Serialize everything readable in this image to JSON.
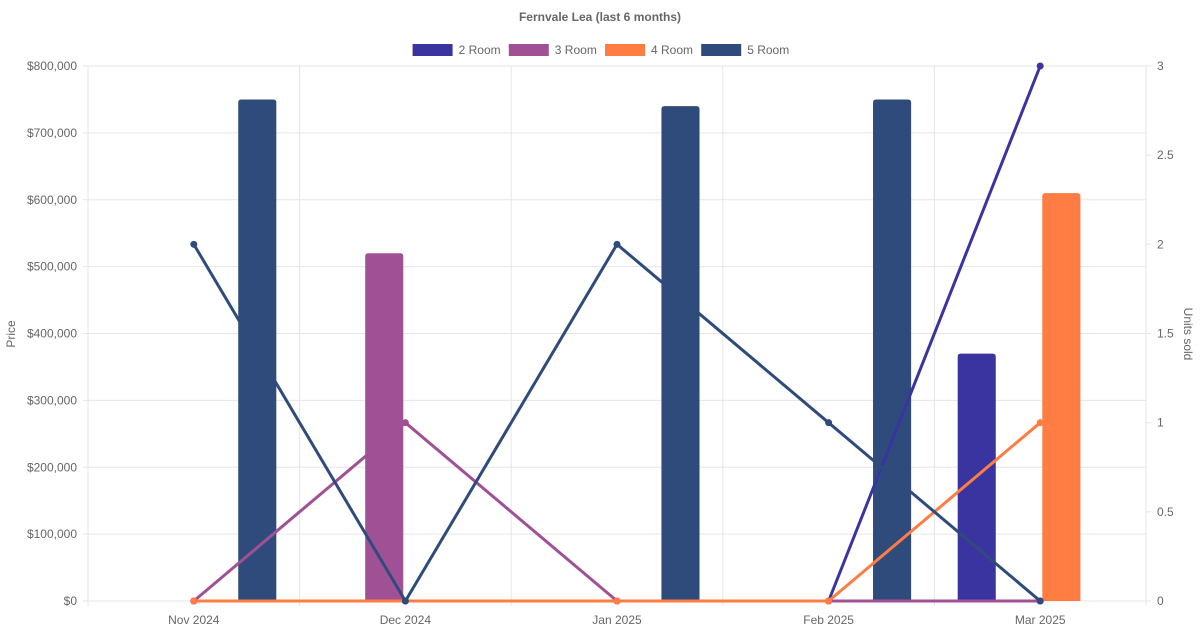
{
  "chart_data": {
    "type": "bar",
    "title": "Fernvale Lea (last 6 months)",
    "categories": [
      "Nov 2024",
      "Dec 2024",
      "Jan 2025",
      "Feb 2025",
      "Mar 2025"
    ],
    "ylabel": "Price",
    "y2label": "Units sold",
    "ylim": [
      0,
      800000
    ],
    "y2lim": [
      0,
      3
    ],
    "yticks": [
      "$0",
      "$100,000",
      "$200,000",
      "$300,000",
      "$400,000",
      "$500,000",
      "$600,000",
      "$700,000",
      "$800,000"
    ],
    "y2ticks": [
      "0",
      "0.5",
      "1",
      "1.5",
      "2",
      "2.5",
      "3"
    ],
    "legend_position": "top",
    "grid": true,
    "series": [
      {
        "name": "2 Room",
        "color": "#3a34a0",
        "price": [
          null,
          null,
          null,
          null,
          370000
        ],
        "units": [
          0,
          0,
          0,
          0,
          3
        ]
      },
      {
        "name": "3 Room",
        "color": "#a05195",
        "price": [
          null,
          520000,
          null,
          null,
          null
        ],
        "units": [
          0,
          1,
          0,
          0,
          0
        ]
      },
      {
        "name": "4 Room",
        "color": "#ff7c43",
        "price": [
          null,
          null,
          null,
          null,
          610000
        ],
        "units": [
          0,
          0,
          0,
          0,
          1
        ]
      },
      {
        "name": "5 Room",
        "color": "#2f4b7c",
        "price": [
          750000,
          null,
          740000,
          750000,
          null
        ],
        "units": [
          2,
          0,
          2,
          1,
          0
        ]
      }
    ]
  }
}
